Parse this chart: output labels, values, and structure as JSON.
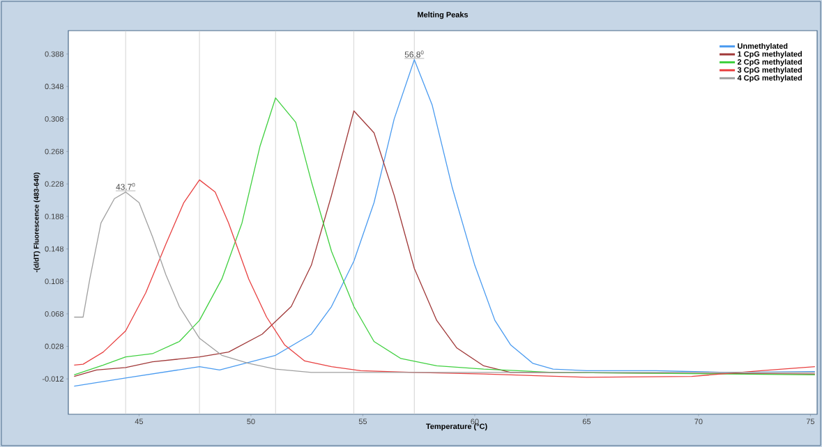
{
  "chart_data": {
    "type": "line",
    "title": "Melting Peaks",
    "xlabel": "Temperature (°C)",
    "ylabel": "-(d/dT) Fluorescence (483-640)",
    "xlim": [
      41.84,
      75.3
    ],
    "ylim": [
      -0.0556,
      0.4168
    ],
    "xticks": [
      45,
      50,
      55,
      60,
      65,
      70,
      75
    ],
    "yticks": [
      {
        "value": 0.388,
        "label": "0.388"
      },
      {
        "value": 0.348,
        "label": "0.348"
      },
      {
        "value": 0.308,
        "label": "0.308"
      },
      {
        "value": 0.268,
        "label": "0.268"
      },
      {
        "value": 0.228,
        "label": "0.228"
      },
      {
        "value": 0.188,
        "label": "0.188"
      },
      {
        "value": 0.148,
        "label": "0.148"
      },
      {
        "value": 0.108,
        "label": "0.108"
      },
      {
        "value": 0.068,
        "label": "0.068"
      },
      {
        "value": 0.028,
        "label": "0.028"
      },
      {
        "value": -0.012,
        "label": "-0.012"
      }
    ],
    "grid": false,
    "legend": "top right",
    "marker": "none",
    "line_style": "solid",
    "annotations": [
      {
        "text": "43.7$^{0}$",
        "x": 44.4,
        "y": 0.218
      },
      {
        "text": "56.8$^{0}$",
        "x": 57.3,
        "y": 0.381
      }
    ],
    "ref_lines": [
      {
        "axis": "x",
        "value": 44.4,
        "color": "#c8c8c8"
      },
      {
        "axis": "x",
        "value": 47.7,
        "color": "#c8c8c8"
      },
      {
        "axis": "x",
        "value": 51.1,
        "color": "#c8c8c8"
      },
      {
        "axis": "x",
        "value": 54.6,
        "color": "#c8c8c8"
      },
      {
        "axis": "x",
        "value": 57.3,
        "color": "#c8c8c8"
      }
    ],
    "series": [
      {
        "name": "Unmethylated",
        "color": "#4a9bf0",
        "x": [
          42.1,
          44.4,
          47.7,
          48.6,
          51.1,
          52.7,
          53.6,
          54.6,
          55.5,
          56.4,
          57.3,
          58.1,
          59.0,
          60.0,
          60.9,
          61.6,
          62.6,
          63.5,
          65.0,
          68.1,
          71.2,
          75.2
        ],
        "values": [
          -0.021,
          -0.011,
          0.003,
          -0.001,
          0.017,
          0.043,
          0.077,
          0.133,
          0.205,
          0.308,
          0.381,
          0.325,
          0.223,
          0.128,
          0.06,
          0.03,
          0.007,
          0.0,
          -0.002,
          -0.002,
          -0.004,
          -0.003
        ]
      },
      {
        "name": "1 CpG methylated",
        "color": "#a03838",
        "x": [
          42.1,
          43.1,
          44.4,
          45.6,
          47.7,
          49.0,
          50.5,
          51.8,
          52.7,
          53.6,
          54.6,
          55.5,
          56.4,
          57.3,
          58.3,
          59.2,
          60.4,
          61.6,
          75.2
        ],
        "values": [
          -0.009,
          -0.001,
          0.002,
          0.009,
          0.015,
          0.021,
          0.043,
          0.077,
          0.128,
          0.214,
          0.318,
          0.291,
          0.214,
          0.124,
          0.06,
          0.026,
          0.004,
          -0.004,
          -0.006
        ]
      },
      {
        "name": "2 CpG methylated",
        "color": "#40d040",
        "x": [
          42.1,
          43.4,
          44.4,
          45.6,
          46.8,
          47.7,
          48.7,
          49.6,
          50.4,
          51.1,
          52.0,
          52.7,
          53.6,
          54.6,
          55.5,
          56.7,
          58.3,
          60.4,
          63.5,
          75.2
        ],
        "values": [
          -0.007,
          0.005,
          0.015,
          0.019,
          0.034,
          0.06,
          0.111,
          0.18,
          0.274,
          0.334,
          0.304,
          0.231,
          0.145,
          0.077,
          0.034,
          0.013,
          0.004,
          0.0,
          -0.004,
          -0.007
        ]
      },
      {
        "name": "3 CpG methylated",
        "color": "#e84040",
        "x": [
          42.1,
          42.5,
          43.4,
          44.4,
          45.3,
          46.2,
          47.0,
          47.7,
          48.4,
          49.0,
          49.9,
          50.7,
          51.5,
          52.4,
          53.6,
          54.9,
          57.3,
          60.4,
          65.0,
          69.7,
          72.8,
          75.2
        ],
        "values": [
          0.005,
          0.006,
          0.021,
          0.047,
          0.094,
          0.154,
          0.205,
          0.233,
          0.218,
          0.18,
          0.111,
          0.064,
          0.03,
          0.01,
          0.003,
          -0.002,
          -0.004,
          -0.006,
          -0.01,
          -0.009,
          -0.002,
          0.003
        ]
      },
      {
        "name": "4 CpG methylated",
        "color": "#a0a0a0",
        "x": [
          42.1,
          42.5,
          42.8,
          43.3,
          43.9,
          44.4,
          45.0,
          45.6,
          46.2,
          46.8,
          47.7,
          48.7,
          49.9,
          51.1,
          52.7,
          54.2,
          75.2
        ],
        "values": [
          0.064,
          0.064,
          0.111,
          0.18,
          0.21,
          0.218,
          0.205,
          0.163,
          0.116,
          0.077,
          0.038,
          0.017,
          0.007,
          0.0,
          -0.004,
          -0.004,
          -0.004
        ]
      }
    ]
  }
}
